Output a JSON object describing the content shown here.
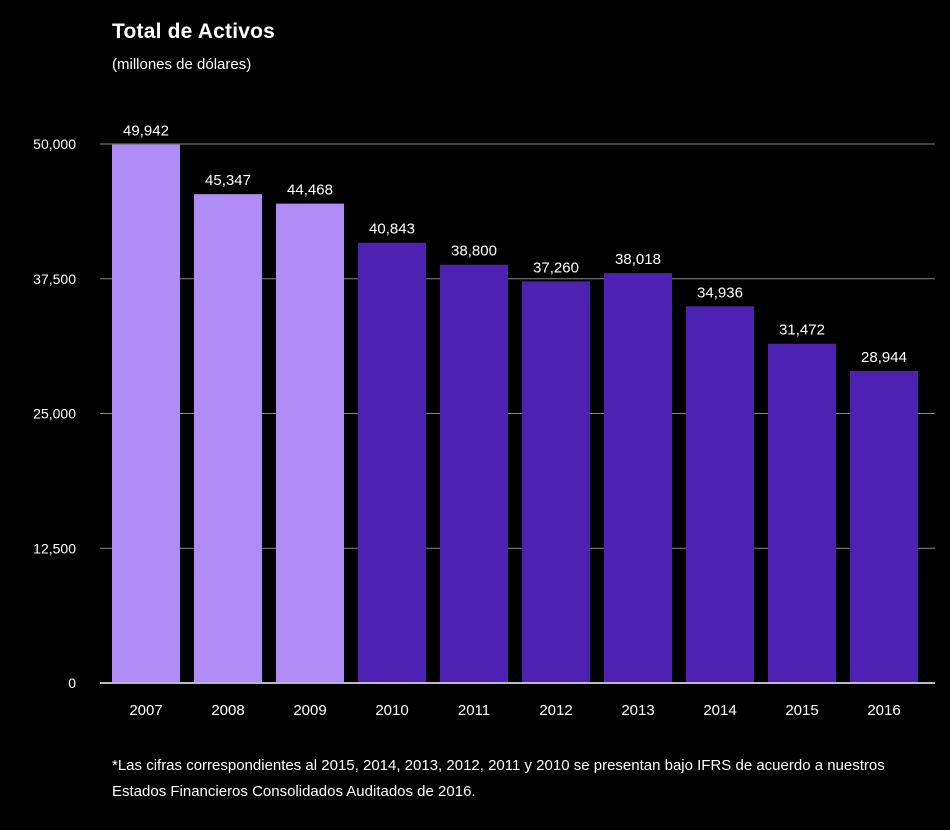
{
  "chart_data": {
    "type": "bar",
    "title": "Total de Activos",
    "subtitle": "(millones de dólares)",
    "xlabel": "",
    "ylabel": "",
    "categories": [
      "2007",
      "2008",
      "2009",
      "2010",
      "2011",
      "2012",
      "2013",
      "2014",
      "2015",
      "2016"
    ],
    "values": [
      49942,
      45347,
      44468,
      40843,
      38800,
      37260,
      38018,
      34936,
      31472,
      28944
    ],
    "value_labels": [
      "49,942",
      "45,347",
      "44,468",
      "40,843",
      "38,800",
      "37,260",
      "38,018",
      "34,936",
      "31,472",
      "28,944"
    ],
    "ylim": [
      0,
      50000
    ],
    "yticks": [
      0,
      12500,
      25000,
      37500,
      50000
    ],
    "ytick_labels": [
      "0",
      "12,500",
      "25,000",
      "37,500",
      "50,000"
    ],
    "grid": true,
    "bar_colors": [
      "#b08cf7",
      "#b08cf7",
      "#b08cf7",
      "#4d22b2",
      "#4d22b2",
      "#4d22b2",
      "#4d22b2",
      "#4d22b2",
      "#4d22b2",
      "#4d22b2"
    ]
  },
  "footnote": "*Las cifras correspondientes al 2015, 2014, 2013, 2012, 2011 y 2010 se presentan bajo IFRS de acuerdo a nuestros Estados Financieros Consolidados Auditados de 2016.",
  "colors": {
    "background": "#000000",
    "text": "#ffffff",
    "gridline": "#888888",
    "axis": "#bbbbbb"
  }
}
